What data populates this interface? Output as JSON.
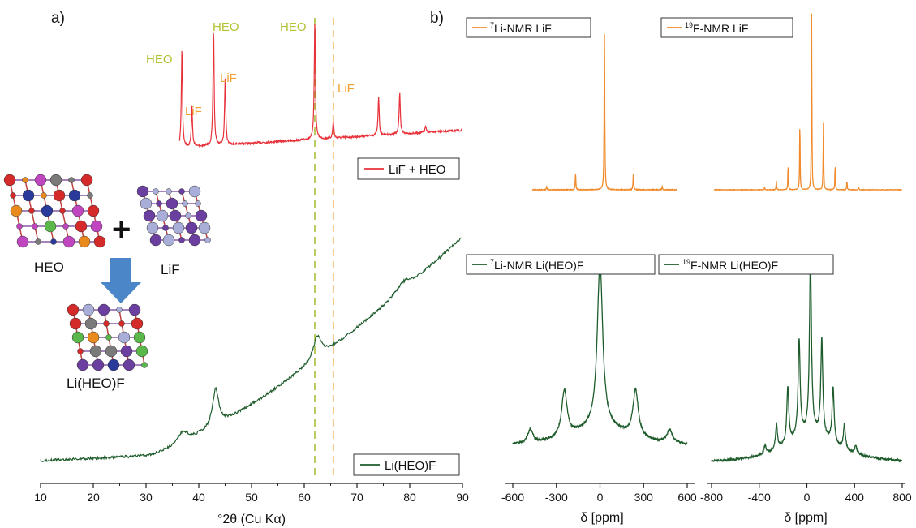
{
  "panel_labels": {
    "a": "a)",
    "b": "b)"
  },
  "colors": {
    "xrd_red": "#e8313a",
    "xrd_green": "#1e5c2c",
    "nmr_orange": "#f08a2a",
    "nmr_green": "#1e5c2c",
    "heo_label": "#b5c235",
    "lif_label": "#f0a030",
    "heo_line": "#a8c03a",
    "lif_line": "#f0a030",
    "arrow": "#4a86c8"
  },
  "structure_labels": {
    "heo": "HEO",
    "lif": "LiF",
    "product": "Li(HEO)F",
    "plus": "+"
  },
  "chart_data": [
    {
      "type": "line",
      "title": "",
      "xlabel": "°2θ (Cu Kα)",
      "ylabel": "",
      "xlim": [
        10,
        90
      ],
      "xticks": [
        10,
        20,
        30,
        40,
        50,
        60,
        70,
        80,
        90
      ],
      "reference_lines": [
        {
          "x": 62.0,
          "label": "HEO"
        },
        {
          "x": 65.5,
          "label": "LiF"
        }
      ],
      "series": [
        {
          "name": "LiF + HEO",
          "peaks": [
            {
              "x": 36.8,
              "label": "HEO"
            },
            {
              "x": 38.7,
              "label": "LiF"
            },
            {
              "x": 42.8,
              "label": "HEO"
            },
            {
              "x": 45.0,
              "label": "LiF"
            },
            {
              "x": 62.0,
              "label": "HEO"
            },
            {
              "x": 65.5,
              "label": "LiF"
            },
            {
              "x": 74.1,
              "label": ""
            },
            {
              "x": 78.1,
              "label": ""
            },
            {
              "x": 83.0,
              "label": ""
            }
          ]
        },
        {
          "name": "Li(HEO)F",
          "peaks": [
            {
              "x": 37.0,
              "label": ""
            },
            {
              "x": 43.2,
              "label": ""
            },
            {
              "x": 62.5,
              "label": ""
            },
            {
              "x": 78.8,
              "label": ""
            }
          ]
        }
      ]
    },
    {
      "type": "line",
      "legend": "7Li-NMR LiF",
      "legend_sup": "7",
      "legend_text": "Li-NMR LiF",
      "xlabel": "",
      "xlim": [
        -600,
        600
      ],
      "xticks": [],
      "xreversed": true
    },
    {
      "type": "line",
      "legend": "19F-NMR LiF",
      "legend_sup": "19",
      "legend_text": "F-NMR LiF",
      "xlabel": "",
      "xlim": [
        -800,
        800
      ],
      "xticks": [],
      "xreversed": true
    },
    {
      "type": "line",
      "legend": "7Li-NMR Li(HEO)F",
      "legend_sup": "7",
      "legend_text": "Li-NMR Li(HEO)F",
      "xlabel": "δ [ppm]",
      "xlim": [
        -600,
        600
      ],
      "xticks": [
        -600,
        -300,
        0,
        300,
        600
      ],
      "xreversed": true
    },
    {
      "type": "line",
      "legend": "19F-NMR Li(HEO)F",
      "legend_sup": "19",
      "legend_text": "F-NMR Li(HEO)F",
      "xlabel": "δ [ppm]",
      "xlim": [
        -800,
        800
      ],
      "xticks": [
        -800,
        -400,
        0,
        400,
        800
      ],
      "xreversed": true
    }
  ]
}
